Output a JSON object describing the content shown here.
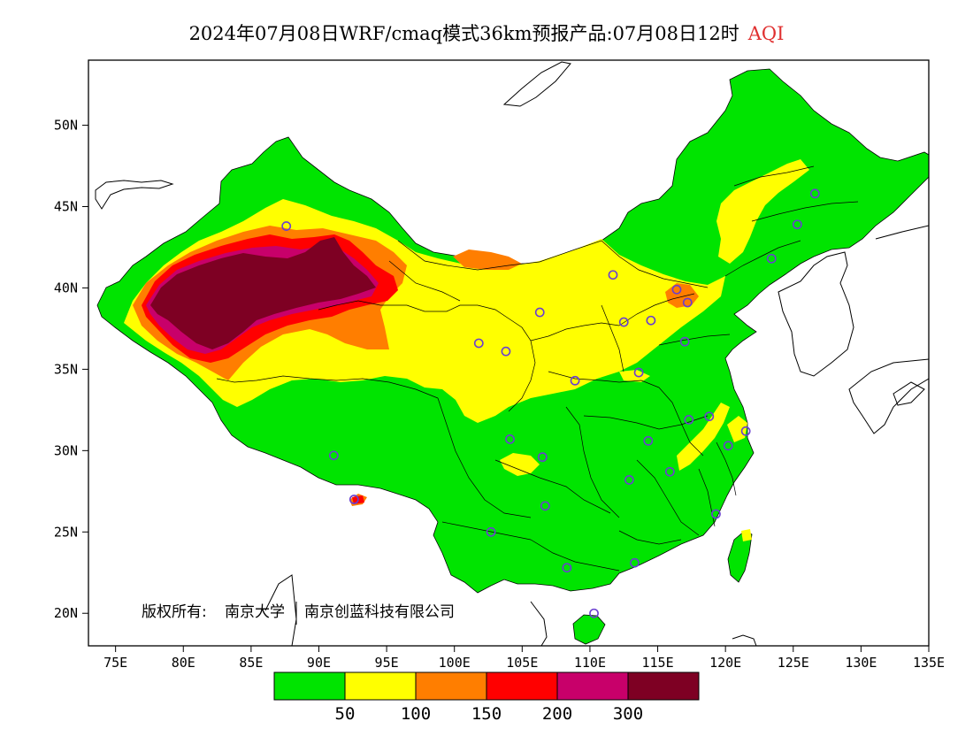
{
  "header": {
    "title": "2024年07月08日WRF/cmaq模式36km预报产品:07月08日12时",
    "product": "AQI",
    "product_color": "#e03030"
  },
  "map": {
    "lon_range": [
      73,
      135
    ],
    "lat_range": [
      18,
      54
    ],
    "lat_ticks": [
      "50N",
      "45N",
      "40N",
      "35N",
      "30N",
      "25N",
      "20N"
    ],
    "lon_ticks": [
      "75E",
      "80E",
      "85E",
      "90E",
      "95E",
      "100E",
      "105E",
      "110E",
      "115E",
      "120E",
      "125E",
      "130E",
      "135E"
    ],
    "copyright_prefix": "版权所有:",
    "copyright_org1": "南京大学",
    "copyright_org2": "南京创蓝科技有限公司",
    "station_color": "#6a3fd0",
    "stations": [
      {
        "lon": 87.6,
        "lat": 43.8
      },
      {
        "lon": 91.1,
        "lat": 29.7
      },
      {
        "lon": 92.6,
        "lat": 27.0
      },
      {
        "lon": 101.8,
        "lat": 36.6
      },
      {
        "lon": 103.8,
        "lat": 36.1
      },
      {
        "lon": 106.3,
        "lat": 38.5
      },
      {
        "lon": 111.7,
        "lat": 40.8
      },
      {
        "lon": 112.5,
        "lat": 37.9
      },
      {
        "lon": 114.5,
        "lat": 38.0
      },
      {
        "lon": 116.4,
        "lat": 39.9
      },
      {
        "lon": 117.2,
        "lat": 39.1
      },
      {
        "lon": 117.0,
        "lat": 36.7
      },
      {
        "lon": 113.6,
        "lat": 34.8
      },
      {
        "lon": 108.9,
        "lat": 34.3
      },
      {
        "lon": 104.1,
        "lat": 30.7
      },
      {
        "lon": 106.5,
        "lat": 29.6
      },
      {
        "lon": 106.7,
        "lat": 26.6
      },
      {
        "lon": 102.7,
        "lat": 25.0
      },
      {
        "lon": 108.3,
        "lat": 22.8
      },
      {
        "lon": 113.3,
        "lat": 23.1
      },
      {
        "lon": 110.3,
        "lat": 20.0
      },
      {
        "lon": 112.9,
        "lat": 28.2
      },
      {
        "lon": 114.3,
        "lat": 30.6
      },
      {
        "lon": 115.9,
        "lat": 28.7
      },
      {
        "lon": 117.3,
        "lat": 31.9
      },
      {
        "lon": 118.8,
        "lat": 32.1
      },
      {
        "lon": 120.2,
        "lat": 30.3
      },
      {
        "lon": 121.5,
        "lat": 31.2
      },
      {
        "lon": 119.3,
        "lat": 26.1
      },
      {
        "lon": 123.4,
        "lat": 41.8
      },
      {
        "lon": 125.3,
        "lat": 43.9
      },
      {
        "lon": 126.6,
        "lat": 45.8
      }
    ]
  },
  "legend": {
    "colors": [
      "#00e400",
      "#ffff00",
      "#ff7e00",
      "#ff0000",
      "#c8006a",
      "#7e0023"
    ],
    "labels": [
      "50",
      "100",
      "150",
      "200",
      "300"
    ]
  }
}
